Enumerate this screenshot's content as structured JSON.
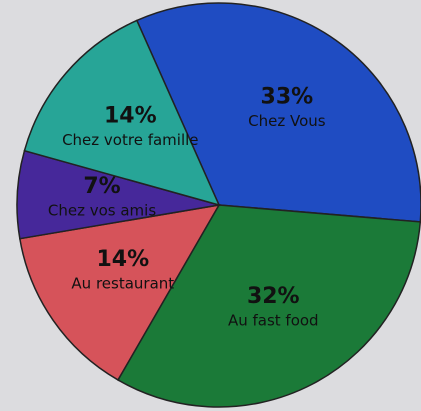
{
  "chart_data": {
    "type": "pie",
    "categories": [
      "Chez Vous",
      "Au fast food",
      "Au restaurant",
      "Chez vos amis",
      "Chez votre famille"
    ],
    "values": [
      33,
      32,
      14,
      7,
      14
    ],
    "value_labels": [
      "33%",
      "32%",
      "14%",
      "7%",
      "14%"
    ],
    "colors": [
      "#1f4cc2",
      "#1b7a38",
      "#d6535a",
      "#46289a",
      "#27a597"
    ]
  }
}
